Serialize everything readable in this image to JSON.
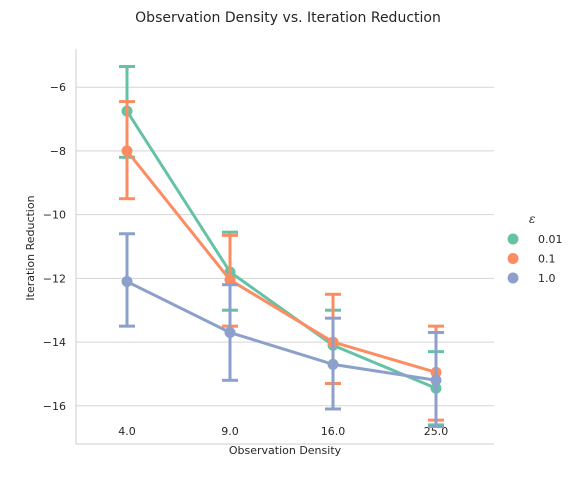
{
  "chart_data": {
    "type": "line",
    "title": "Observation Density vs. Iteration Reduction",
    "xlabel": "Observation Density",
    "ylabel": "Iteration Reduction",
    "categories": [
      "4.0",
      "9.0",
      "16.0",
      "25.0"
    ],
    "y_ticks": [
      "−16",
      "−14",
      "−12",
      "−10",
      "−8",
      "−6"
    ],
    "y_tick_values": [
      -16,
      -14,
      -12,
      -10,
      -8,
      -6
    ],
    "ylim": [
      -17.2,
      -4.8
    ],
    "grid": "horizontal",
    "legend": {
      "title": "ε",
      "placement": "right-center"
    },
    "series": [
      {
        "name": "0.01",
        "color": "#66c2a5",
        "values": [
          -6.75,
          -11.8,
          -14.1,
          -15.45
        ],
        "err_low": [
          -8.2,
          -13.0,
          -15.3,
          -16.6
        ],
        "err_high": [
          -5.35,
          -10.55,
          -13.0,
          -14.3
        ]
      },
      {
        "name": "0.1",
        "color": "#fc8d62",
        "values": [
          -8.0,
          -12.05,
          -14.0,
          -14.95
        ],
        "err_low": [
          -9.5,
          -13.5,
          -15.3,
          -16.45
        ],
        "err_high": [
          -6.45,
          -10.65,
          -12.5,
          -13.5
        ]
      },
      {
        "name": "1.0",
        "color": "#8da0cb",
        "values": [
          -12.1,
          -13.7,
          -14.7,
          -15.2
        ],
        "err_low": [
          -13.5,
          -15.2,
          -16.1,
          -16.65
        ],
        "err_high": [
          -10.6,
          -12.2,
          -13.25,
          -13.7
        ]
      }
    ]
  }
}
